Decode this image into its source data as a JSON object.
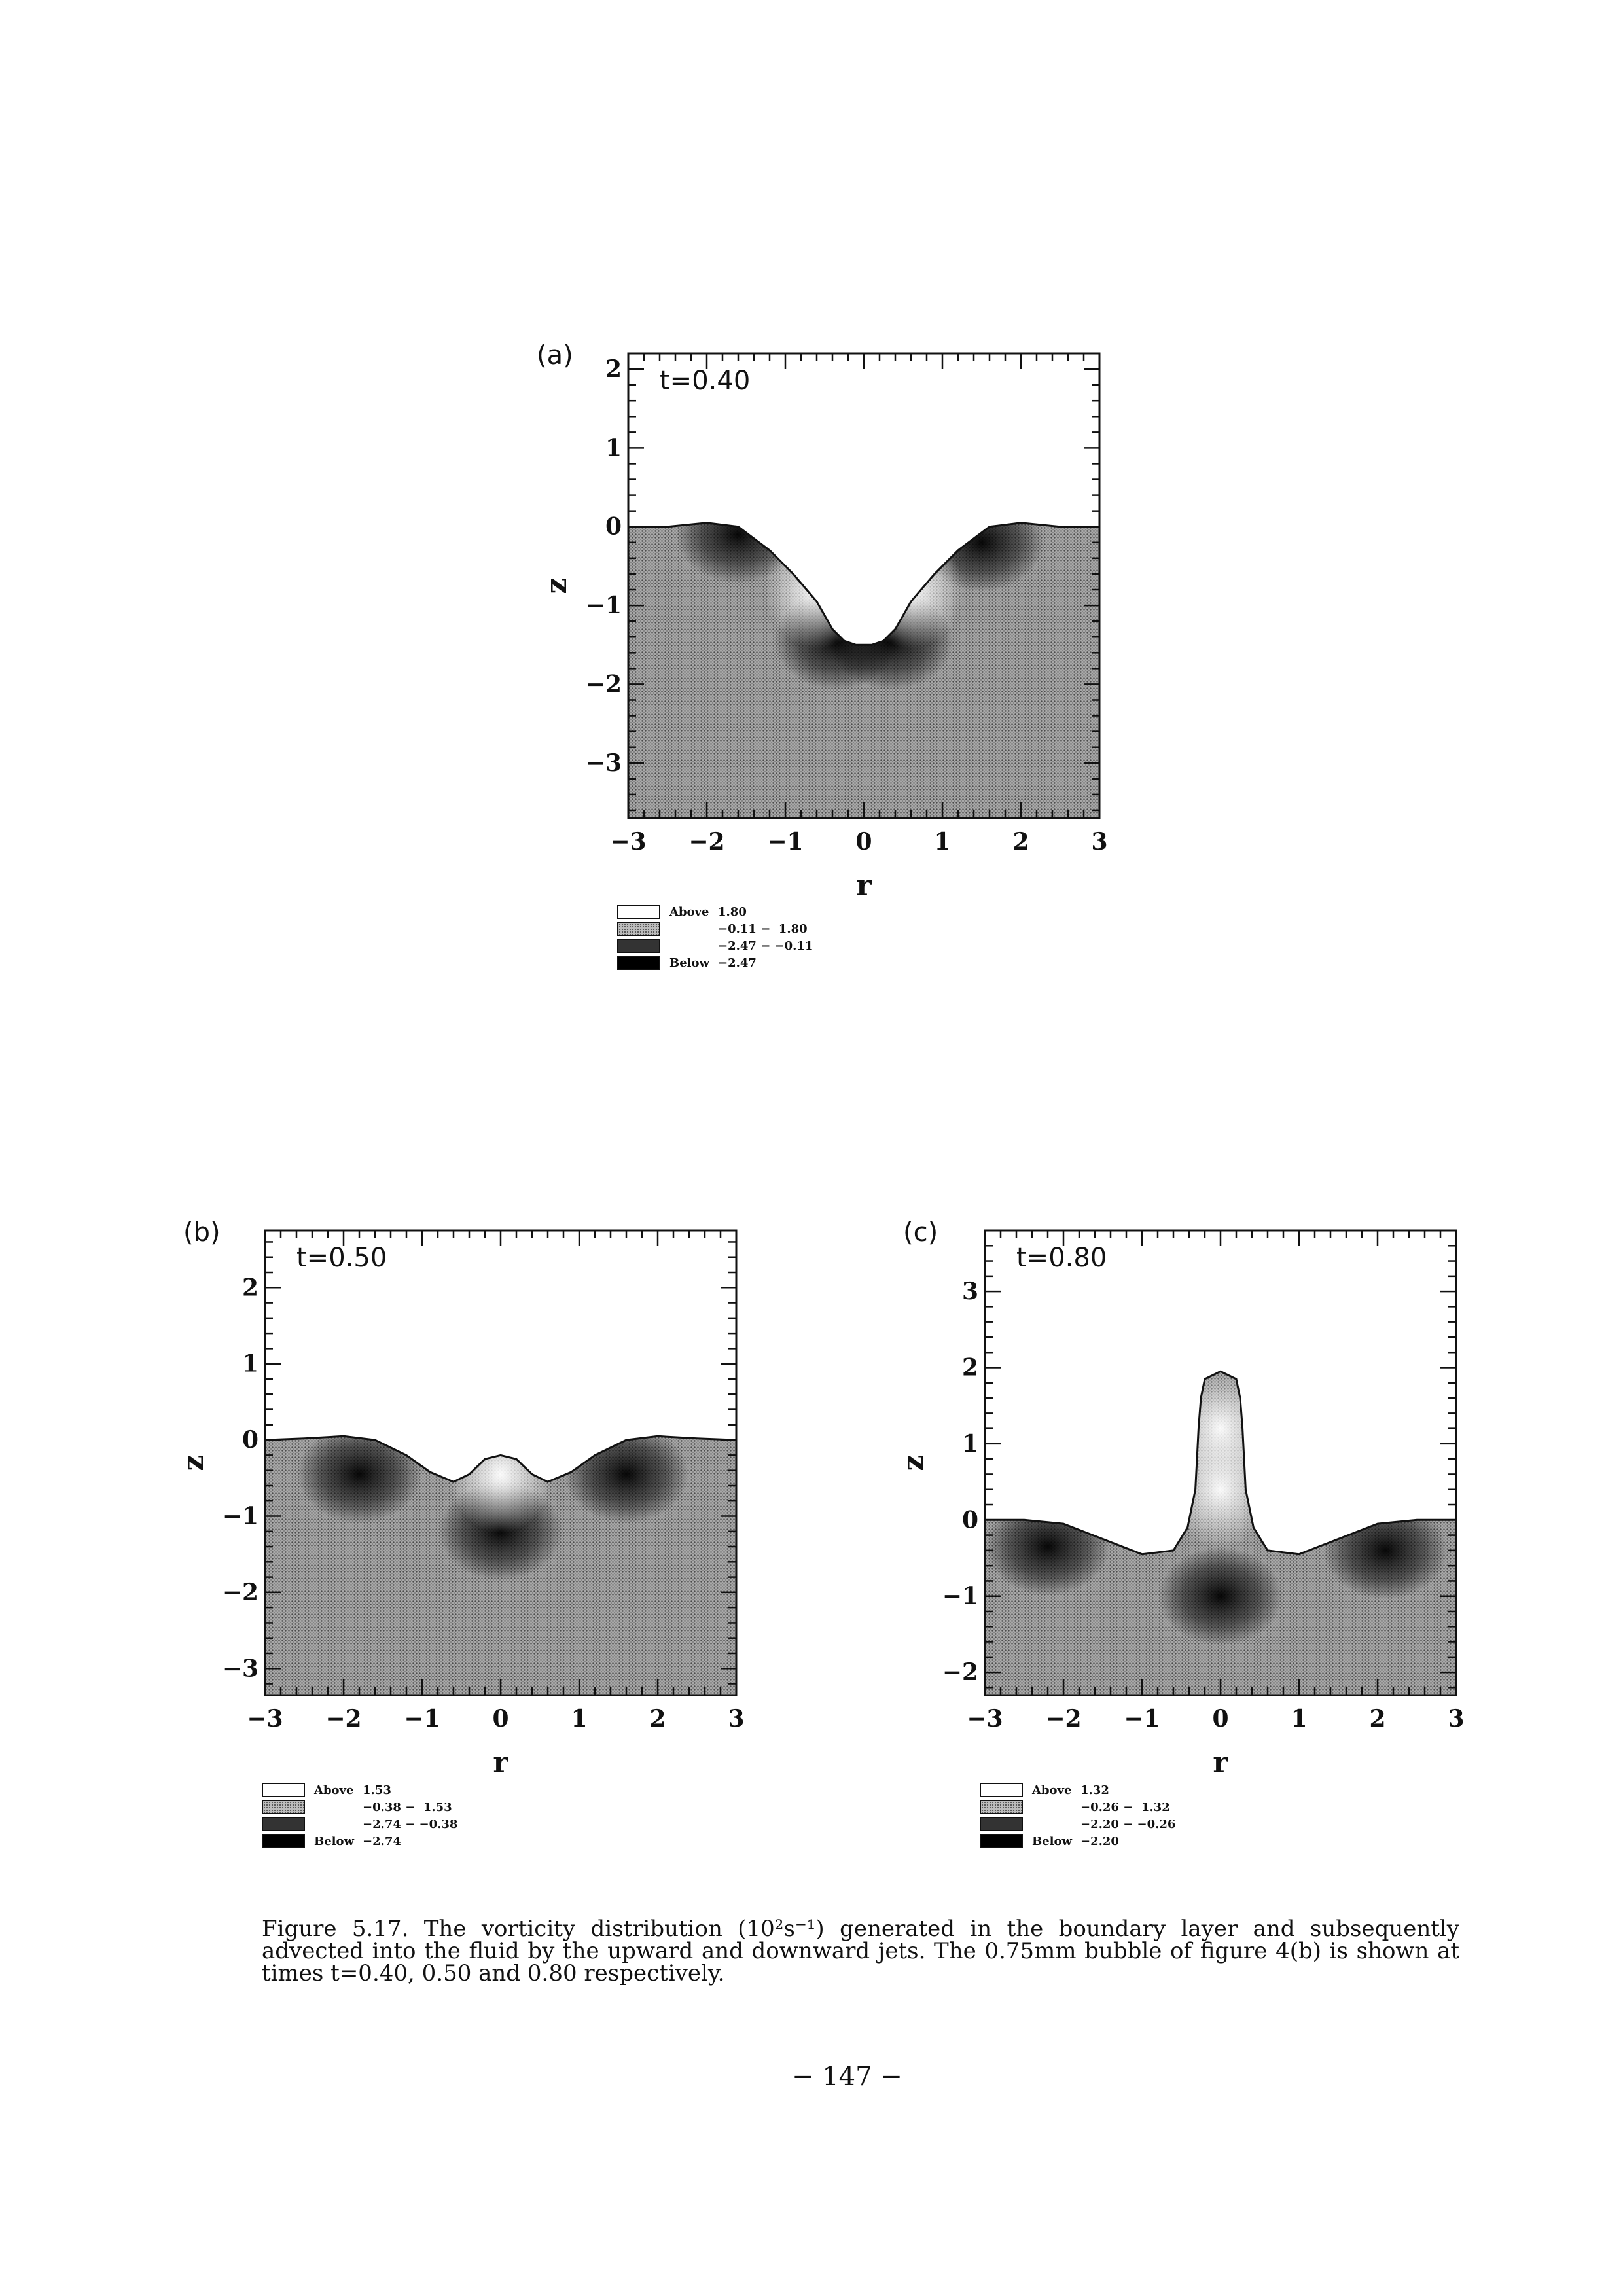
{
  "figure": {
    "panels": [
      {
        "letter": "(a)",
        "time_label": "t=0.40",
        "x_ticks": [
          "−3",
          "−2",
          "−1",
          "0",
          "1",
          "2",
          "3"
        ],
        "y_ticks": [
          "2",
          "1",
          "0",
          "−1",
          "−2",
          "−3"
        ],
        "xlabel": "r",
        "ylabel": "z",
        "x_range": [
          -3,
          3
        ],
        "y_range": [
          -3.7,
          2.2
        ],
        "y_tick_values": [
          2,
          1,
          0,
          -1,
          -2,
          -3
        ],
        "surface_r": [
          -3.0,
          -2.5,
          -2.0,
          -1.6,
          -1.2,
          -0.9,
          -0.6,
          -0.4,
          -0.25,
          -0.1,
          0.0,
          0.1,
          0.25,
          0.4,
          0.6,
          0.9,
          1.2,
          1.6,
          2.0,
          2.5,
          3.0
        ],
        "surface_z": [
          0.0,
          0.0,
          0.05,
          0.0,
          -0.3,
          -0.6,
          -0.95,
          -1.3,
          -1.45,
          -1.5,
          -1.5,
          -1.5,
          -1.45,
          -1.3,
          -0.95,
          -0.6,
          -0.3,
          0.0,
          0.05,
          0.0,
          0.0
        ],
        "light_regions": [
          [
            -0.6,
            -0.8
          ],
          [
            0.6,
            -0.8
          ]
        ],
        "dark_regions": [
          [
            -0.35,
            -1.45
          ],
          [
            0.35,
            -1.45
          ],
          [
            -1.6,
            -0.1
          ],
          [
            1.5,
            -0.2
          ]
        ],
        "legend": [
          {
            "name": "Above",
            "range": "1.80"
          },
          {
            "name": "",
            "range": "−0.11 −  1.80"
          },
          {
            "name": "",
            "range": "−2.47 − −0.11"
          },
          {
            "name": "Below",
            "range": "−2.47"
          }
        ]
      },
      {
        "letter": "(b)",
        "time_label": "t=0.50",
        "x_ticks": [
          "−3",
          "−2",
          "−1",
          "0",
          "1",
          "2",
          "3"
        ],
        "y_ticks": [
          "2",
          "1",
          "0",
          "−1",
          "−2",
          "−3"
        ],
        "xlabel": "r",
        "ylabel": "z",
        "x_range": [
          -3,
          3
        ],
        "y_range": [
          -3.35,
          2.75
        ],
        "y_tick_values": [
          2,
          1,
          0,
          -1,
          -2,
          -3
        ],
        "surface_r": [
          -3.0,
          -2.5,
          -2.0,
          -1.6,
          -1.2,
          -0.9,
          -0.6,
          -0.4,
          -0.2,
          0.0,
          0.2,
          0.4,
          0.6,
          0.9,
          1.2,
          1.6,
          2.0,
          2.5,
          3.0
        ],
        "surface_z": [
          0.0,
          0.02,
          0.05,
          0.0,
          -0.2,
          -0.42,
          -0.55,
          -0.45,
          -0.25,
          -0.2,
          -0.25,
          -0.45,
          -0.55,
          -0.42,
          -0.2,
          0.0,
          0.05,
          0.02,
          0.0
        ],
        "light_regions": [
          [
            0.0,
            -0.45
          ]
        ],
        "dark_regions": [
          [
            0.0,
            -1.2
          ],
          [
            -1.8,
            -0.45
          ],
          [
            1.6,
            -0.45
          ]
        ],
        "legend": [
          {
            "name": "Above",
            "range": "1.53"
          },
          {
            "name": "",
            "range": "−0.38 −  1.53"
          },
          {
            "name": "",
            "range": "−2.74 − −0.38"
          },
          {
            "name": "Below",
            "range": "−2.74"
          }
        ]
      },
      {
        "letter": "(c)",
        "time_label": "t=0.80",
        "x_ticks": [
          "−3",
          "−2",
          "−1",
          "0",
          "1",
          "2",
          "3"
        ],
        "y_ticks": [
          "3",
          "2",
          "1",
          "0",
          "−1",
          "−2"
        ],
        "xlabel": "r",
        "ylabel": "z",
        "x_range": [
          -3,
          3
        ],
        "y_range": [
          -2.3,
          3.8
        ],
        "y_tick_values": [
          3,
          2,
          1,
          0,
          -1,
          -2
        ],
        "surface_r": [
          -3.0,
          -2.5,
          -2.0,
          -1.5,
          -1.0,
          -0.6,
          -0.42,
          -0.32,
          -0.28,
          -0.25,
          -0.2,
          0.0,
          0.2,
          0.25,
          0.28,
          0.32,
          0.42,
          0.6,
          1.0,
          1.5,
          2.0,
          2.5,
          3.0
        ],
        "surface_z": [
          0.0,
          0.0,
          -0.05,
          -0.25,
          -0.45,
          -0.4,
          -0.1,
          0.4,
          1.2,
          1.6,
          1.85,
          1.95,
          1.85,
          1.6,
          1.2,
          0.4,
          -0.1,
          -0.4,
          -0.45,
          -0.25,
          -0.05,
          0.0,
          0.0
        ],
        "light_regions": [
          [
            0.0,
            0.4
          ],
          [
            0.0,
            1.2
          ]
        ],
        "dark_regions": [
          [
            0.0,
            -1.0
          ],
          [
            -2.2,
            -0.35
          ],
          [
            2.1,
            -0.4
          ]
        ],
        "legend": [
          {
            "name": "Above",
            "range": "1.32"
          },
          {
            "name": "",
            "range": "−0.26 −  1.32"
          },
          {
            "name": "",
            "range": "−2.20 − −0.26"
          },
          {
            "name": "Below",
            "range": "−2.20"
          }
        ]
      }
    ],
    "caption": "Figure 5.17. The vorticity distribution (10²s⁻¹) generated in the boundary layer and subsequently advected into the fluid by the upward and downward jets. The 0.75mm bubble of figure 4(b) is shown at times t=0.40, 0.50 and 0.80 respectively.",
    "page_number": "− 147 −"
  }
}
